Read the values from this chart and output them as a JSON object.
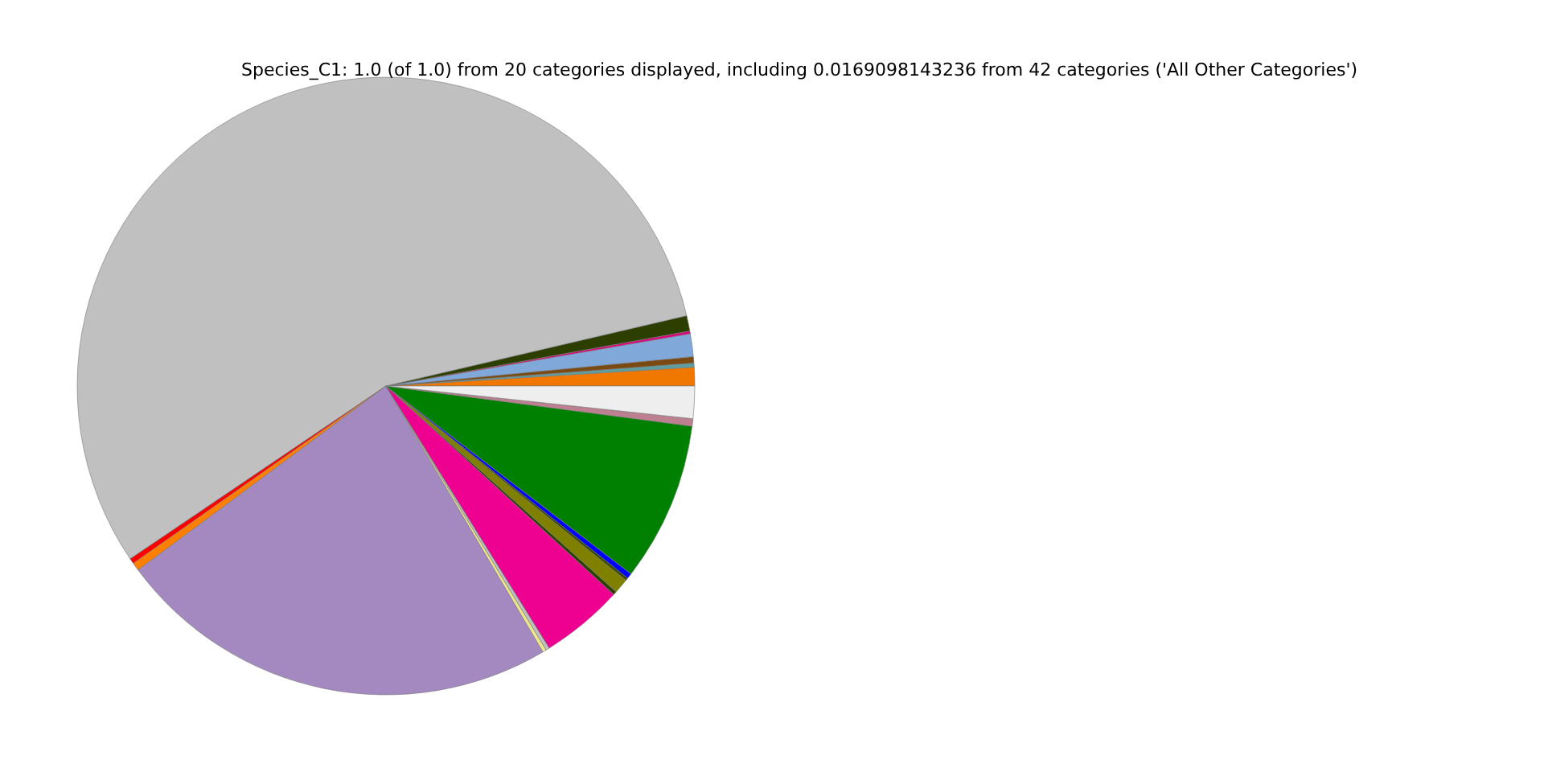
{
  "chart_data": {
    "type": "pie",
    "title": "Species_C1: 1.0 (of 1.0) from 20 categories displayed, including 0.0169098143236 from 42 categories ('All Other Categories')",
    "categories": [
      null,
      null,
      null,
      null,
      null,
      null,
      null,
      null,
      null,
      null,
      null,
      null,
      null,
      null,
      null,
      null,
      null,
      null,
      null,
      null
    ],
    "values": [
      0.97,
      0.22,
      0.33,
      1.19,
      0.14,
      0.81,
      55.8,
      0.28,
      0.42,
      23.33,
      0.19,
      0.19,
      4.33,
      0.19,
      0.78,
      0.14,
      0.28,
      8.33,
      0.39,
      1.69
    ],
    "colors": [
      "#f07800",
      "#5f9ea0",
      "#7b4a12",
      "#80a8d8",
      "#e0007f",
      "#2d3f00",
      "#c0c0c0",
      "#ff0000",
      "#ff8000",
      "#a389c0",
      "#f0e68c",
      "#c0c0c0",
      "#ee0090",
      "#2d3f00",
      "#808000",
      "#3a4a00",
      "#0000ff",
      "#008000",
      "#bc8090",
      "#eeeeee"
    ]
  }
}
